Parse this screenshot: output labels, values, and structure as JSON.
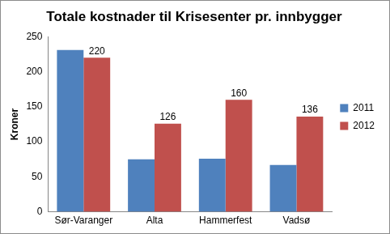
{
  "chart_data": {
    "type": "bar",
    "title": "Totale kostnader til Krisesenter pr. innbygger",
    "y_label": "Kroner",
    "categories": [
      "Sør-Varanger",
      "Alta",
      "Hammerfest",
      "Vadsø"
    ],
    "series": [
      {
        "name": "2011",
        "color": "#4f81bd",
        "values": [
          231,
          75,
          76,
          67
        ]
      },
      {
        "name": "2012",
        "color": "#c0504d",
        "values": [
          220,
          126,
          160,
          136
        ],
        "data_labels": true
      }
    ],
    "ylim": [
      0,
      250
    ],
    "yticks": [
      0,
      50,
      100,
      150,
      200,
      250
    ],
    "grid": false,
    "legend": "right"
  }
}
